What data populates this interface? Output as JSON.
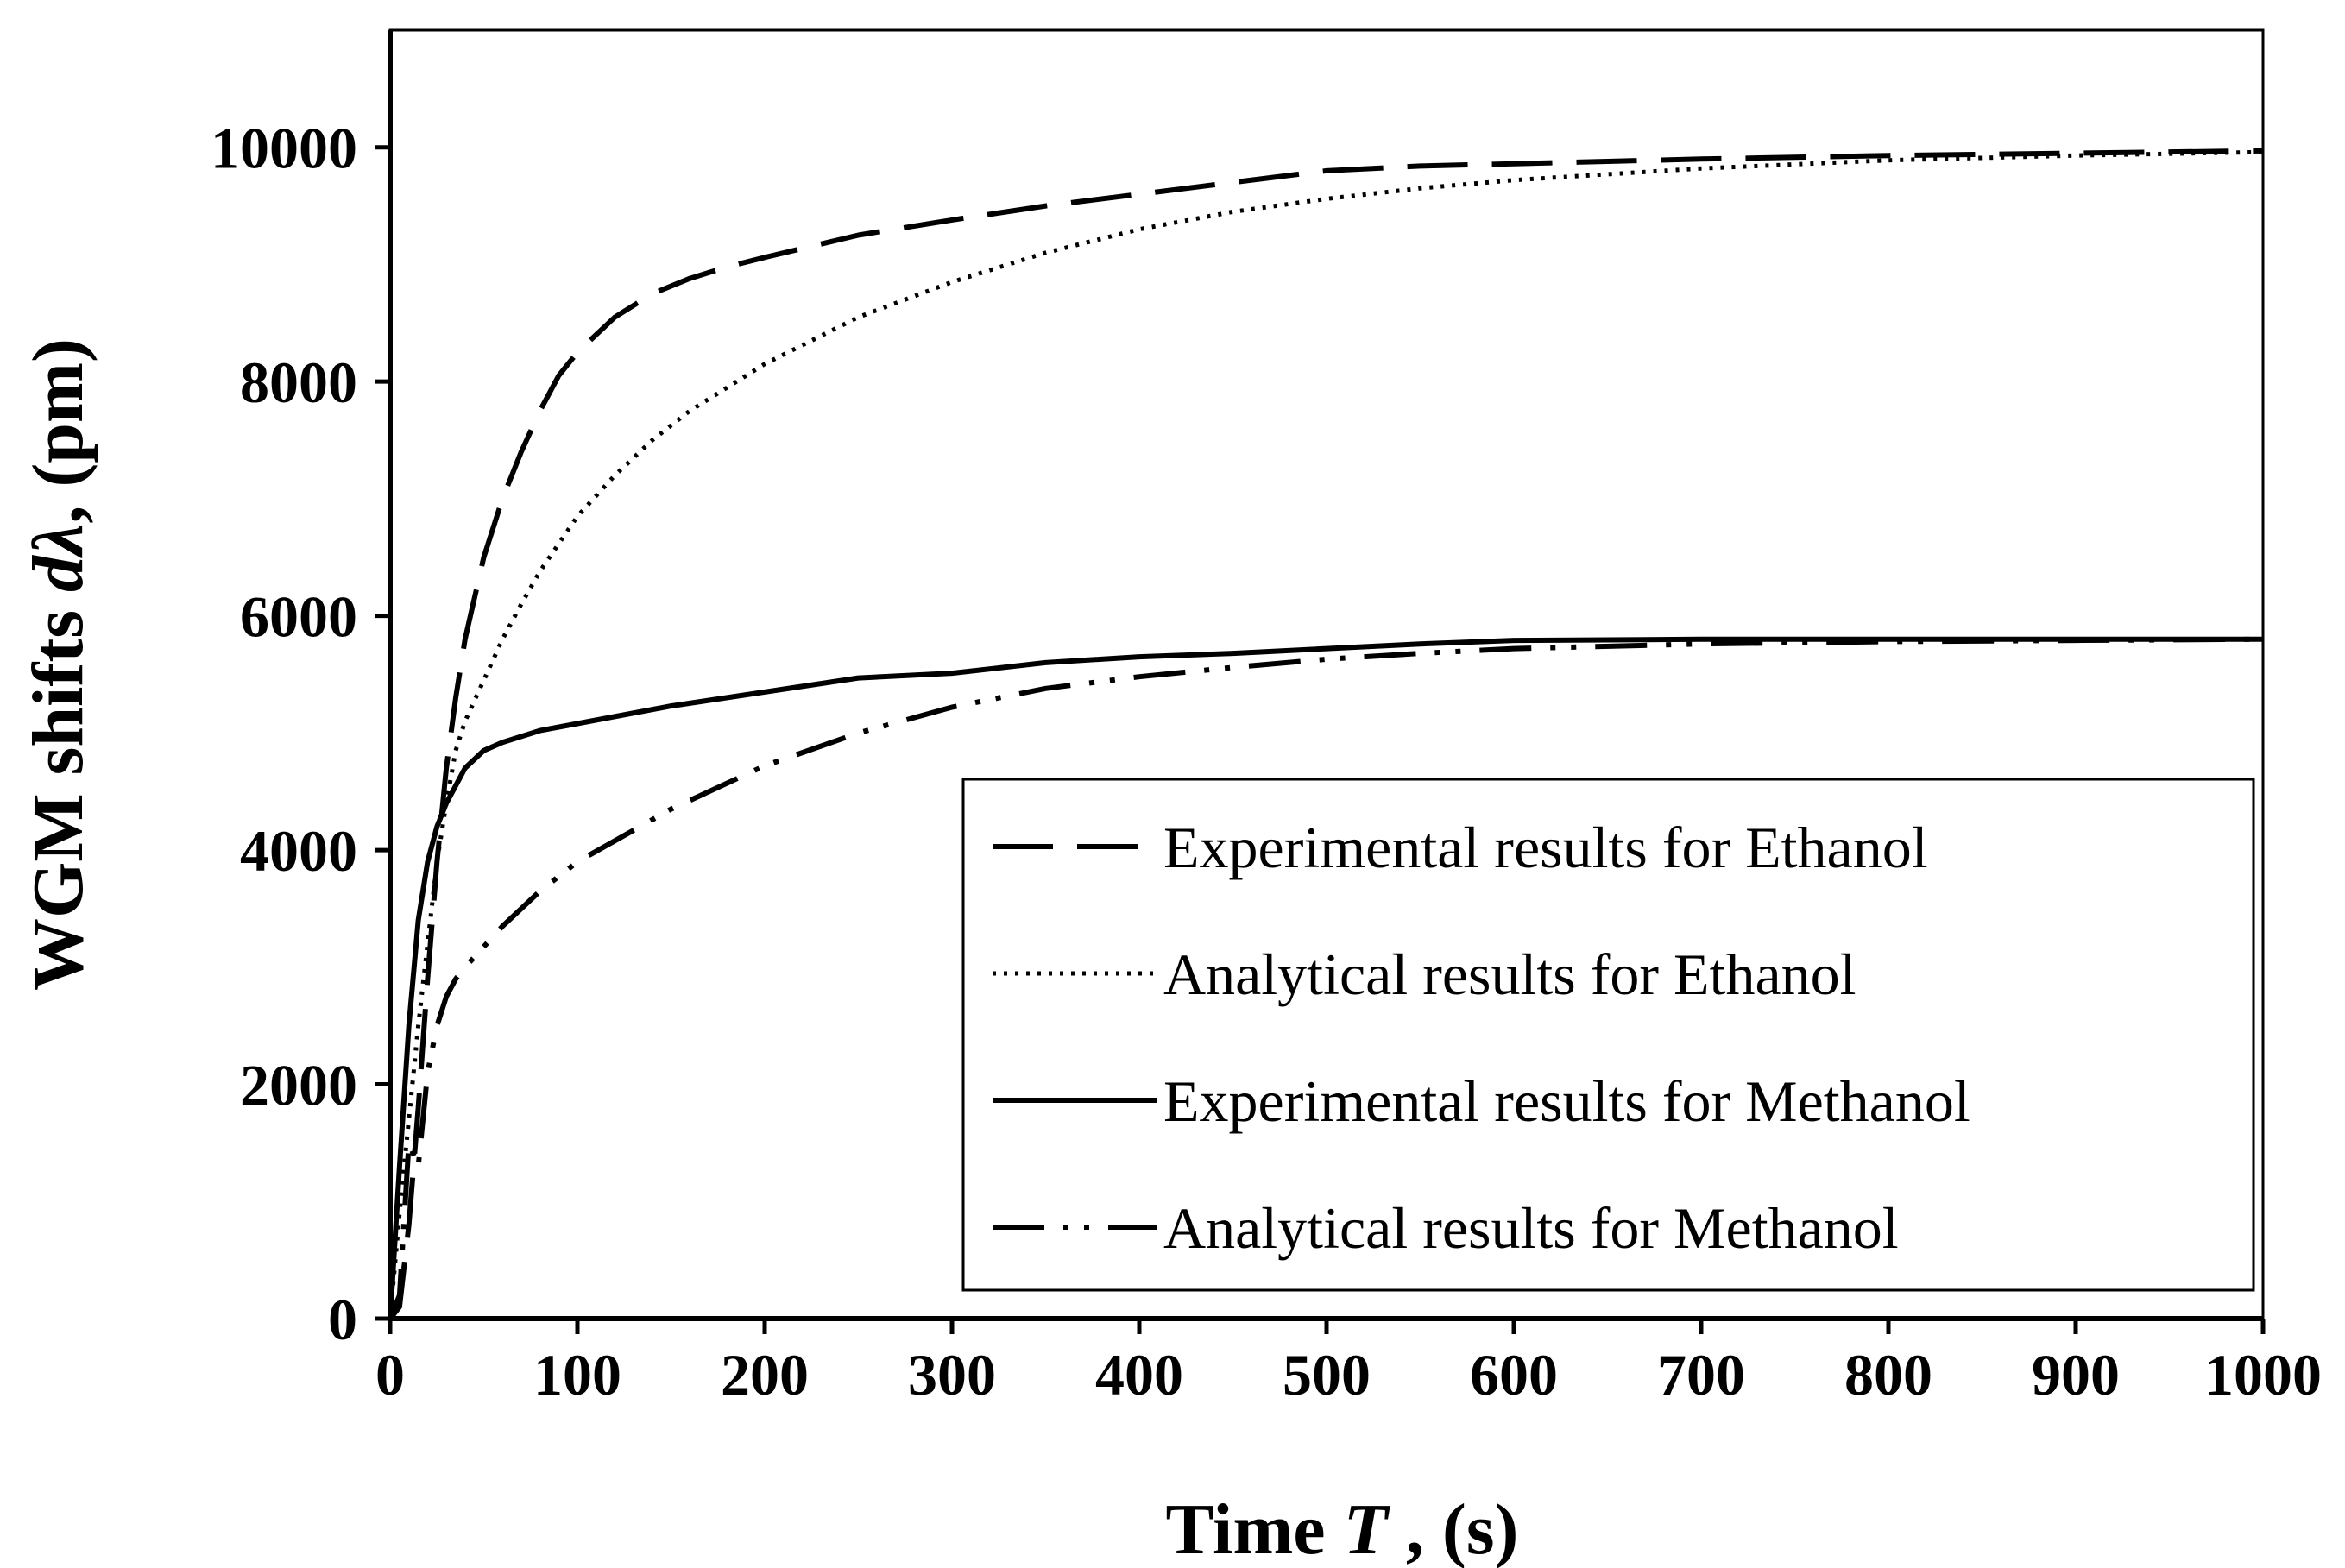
{
  "chart_data": {
    "type": "line",
    "title": "",
    "xlabel_prefix": "Time ",
    "xlabel_symbol": "T",
    "xlabel_suffix": " , (s)",
    "ylabel_prefix": "WGM shifts ",
    "ylabel_symbol": "dλ",
    "ylabel_suffix": ", (pm)",
    "xlim": [
      0,
      1000
    ],
    "ylim": [
      0,
      11000
    ],
    "xticks": [
      0,
      100,
      200,
      300,
      400,
      500,
      600,
      700,
      800,
      900,
      1000
    ],
    "yticks": [
      0,
      2000,
      4000,
      6000,
      8000,
      10000
    ],
    "grid": false,
    "legend_position": "lower-right",
    "series": [
      {
        "name": "Experimental results for Ethanol",
        "style": "dashed",
        "x": [
          0,
          5,
          10,
          15,
          20,
          25,
          30,
          35,
          40,
          50,
          60,
          70,
          80,
          90,
          100,
          120,
          140,
          160,
          180,
          200,
          250,
          300,
          350,
          400,
          450,
          500,
          550,
          600,
          650,
          700,
          800,
          900,
          1000
        ],
        "y": [
          0,
          100,
          800,
          1800,
          2900,
          3900,
          4700,
          5300,
          5800,
          6500,
          7000,
          7400,
          7750,
          8050,
          8250,
          8550,
          8750,
          8880,
          8980,
          9060,
          9250,
          9380,
          9500,
          9600,
          9700,
          9800,
          9840,
          9860,
          9880,
          9900,
          9930,
          9950,
          9970
        ]
      },
      {
        "name": "Analytical results for Ethanol",
        "style": "dotted",
        "x": [
          0,
          5,
          10,
          15,
          20,
          25,
          30,
          35,
          40,
          50,
          60,
          70,
          80,
          100,
          120,
          140,
          160,
          180,
          200,
          250,
          300,
          350,
          400,
          450,
          500,
          550,
          600,
          700,
          800,
          900,
          1000
        ],
        "y": [
          0,
          900,
          1700,
          2500,
          3200,
          3900,
          4400,
          4850,
          5100,
          5450,
          5800,
          6100,
          6380,
          6850,
          7200,
          7500,
          7750,
          7950,
          8150,
          8550,
          8850,
          9100,
          9300,
          9450,
          9560,
          9650,
          9720,
          9820,
          9890,
          9930,
          9960
        ]
      },
      {
        "name": "Experimental results for Methanol",
        "style": "solid",
        "x": [
          0,
          5,
          10,
          15,
          20,
          25,
          30,
          35,
          40,
          50,
          60,
          80,
          100,
          150,
          200,
          250,
          300,
          350,
          400,
          450,
          500,
          550,
          600,
          700,
          800,
          900,
          1000
        ],
        "y": [
          0,
          1300,
          2500,
          3400,
          3900,
          4200,
          4400,
          4550,
          4700,
          4850,
          4920,
          5020,
          5080,
          5230,
          5350,
          5470,
          5510,
          5600,
          5650,
          5680,
          5720,
          5760,
          5790,
          5800,
          5800,
          5800,
          5800
        ]
      },
      {
        "name": "Analytical results for Methanol",
        "style": "dash-dot-dot",
        "x": [
          0,
          5,
          10,
          15,
          20,
          25,
          30,
          35,
          40,
          60,
          80,
          100,
          150,
          200,
          250,
          300,
          350,
          400,
          450,
          500,
          550,
          600,
          700,
          800,
          900,
          1000
        ],
        "y": [
          0,
          200,
          1500,
          1300,
          2100,
          2500,
          2750,
          2900,
          3000,
          3350,
          3650,
          3900,
          4350,
          4720,
          5000,
          5220,
          5380,
          5480,
          5560,
          5630,
          5680,
          5720,
          5760,
          5780,
          5790,
          5800
        ]
      }
    ]
  }
}
